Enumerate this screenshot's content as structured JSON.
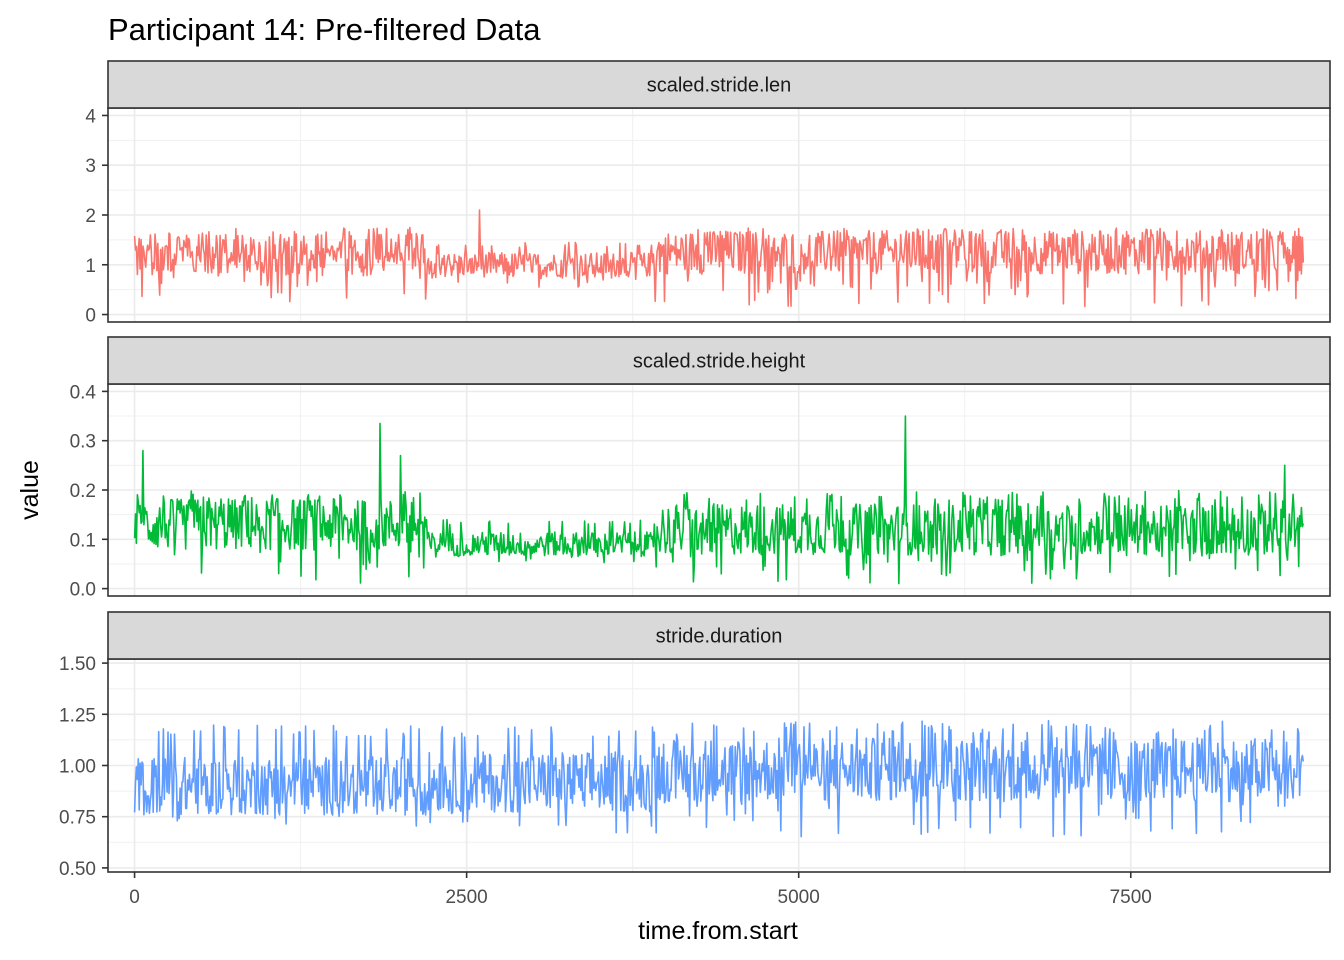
{
  "chart_data": {
    "type": "line",
    "title": "Participant 14: Pre-filtered Data",
    "xlabel": "time.from.start",
    "ylabel": "value",
    "xlim": [
      -200,
      9000
    ],
    "xticks": [
      0,
      2500,
      5000,
      7500
    ],
    "x_tick_labels": [
      "0",
      "2500",
      "5000",
      "7500"
    ],
    "grid": true,
    "legend": "none",
    "panels": [
      {
        "strip": "scaled.stride.len",
        "color": "#F8766D",
        "ylim": [
          -0.15,
          4.15
        ],
        "yticks": [
          0,
          1,
          2,
          3,
          4
        ],
        "y_tick_labels": [
          "0",
          "1",
          "2",
          "3",
          "4"
        ],
        "segments": [
          {
            "from": 0,
            "to": 2200,
            "low": 0.2,
            "high": 1.75,
            "center": 1.2
          },
          {
            "from": 2200,
            "to": 3900,
            "low": 0.55,
            "high": 1.45,
            "center": 1.0
          },
          {
            "from": 3900,
            "to": 8800,
            "low": 0.15,
            "high": 1.75,
            "center": 1.25
          }
        ],
        "spikes": [
          {
            "x": 2600,
            "y": 2.1
          }
        ]
      },
      {
        "strip": "scaled.stride.height",
        "color": "#00BA38",
        "ylim": [
          -0.015,
          0.415
        ],
        "yticks": [
          0.0,
          0.1,
          0.2,
          0.3,
          0.4
        ],
        "y_tick_labels": [
          "0.0",
          "0.1",
          "0.2",
          "0.3",
          "0.4"
        ],
        "segments": [
          {
            "from": 0,
            "to": 2200,
            "low": 0.01,
            "high": 0.2,
            "center": 0.13
          },
          {
            "from": 2200,
            "to": 3900,
            "low": 0.05,
            "high": 0.14,
            "center": 0.09
          },
          {
            "from": 3900,
            "to": 8800,
            "low": 0.01,
            "high": 0.2,
            "center": 0.12
          }
        ],
        "spikes": [
          {
            "x": 60,
            "y": 0.28
          },
          {
            "x": 1850,
            "y": 0.335
          },
          {
            "x": 2000,
            "y": 0.27
          },
          {
            "x": 5800,
            "y": 0.35
          },
          {
            "x": 8660,
            "y": 0.25
          }
        ]
      },
      {
        "strip": "stride.duration",
        "color": "#619CFF",
        "ylim": [
          0.48,
          1.52
        ],
        "yticks": [
          0.5,
          0.75,
          1.0,
          1.25,
          1.5
        ],
        "y_tick_labels": [
          "0.50",
          "0.75",
          "1.00",
          "1.25",
          "1.50"
        ],
        "segments": [
          {
            "from": 0,
            "to": 2200,
            "low": 0.68,
            "high": 1.2,
            "center": 0.9
          },
          {
            "from": 2200,
            "to": 3900,
            "low": 0.66,
            "high": 1.2,
            "center": 0.92
          },
          {
            "from": 3900,
            "to": 8800,
            "low": 0.65,
            "high": 1.22,
            "center": 0.98
          }
        ],
        "spikes": []
      }
    ]
  }
}
